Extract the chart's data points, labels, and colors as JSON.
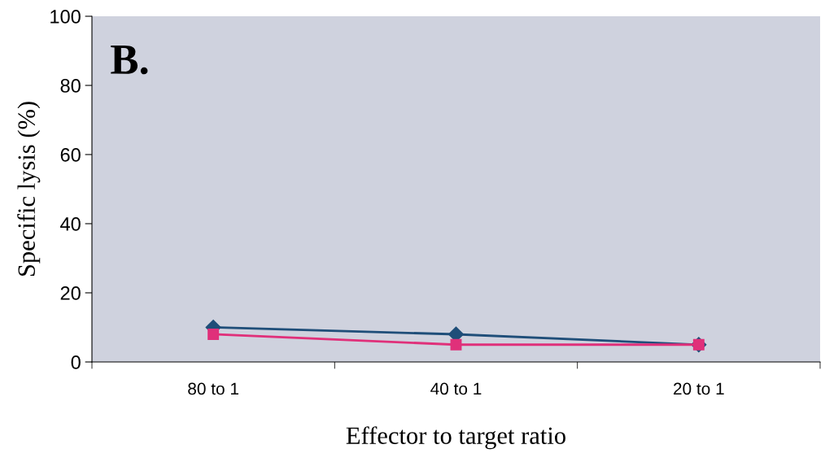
{
  "chart_data": {
    "type": "line",
    "xlabel": "Effector to target ratio",
    "ylabel": "Specific lysis (%)",
    "annotations": [
      "B."
    ],
    "categories": [
      "80 to 1",
      "40 to 1",
      "20 to 1"
    ],
    "series": [
      {
        "color": "#1f4e79",
        "marker": "diamond",
        "values": [
          10,
          8,
          5
        ]
      },
      {
        "color": "#e0307a",
        "marker": "square",
        "values": [
          8,
          5,
          5
        ]
      }
    ],
    "ylim": [
      0,
      100
    ],
    "yticks": [
      0,
      20,
      40,
      60,
      80,
      100
    ],
    "grid": false,
    "legend": false,
    "line_style": "solid"
  }
}
